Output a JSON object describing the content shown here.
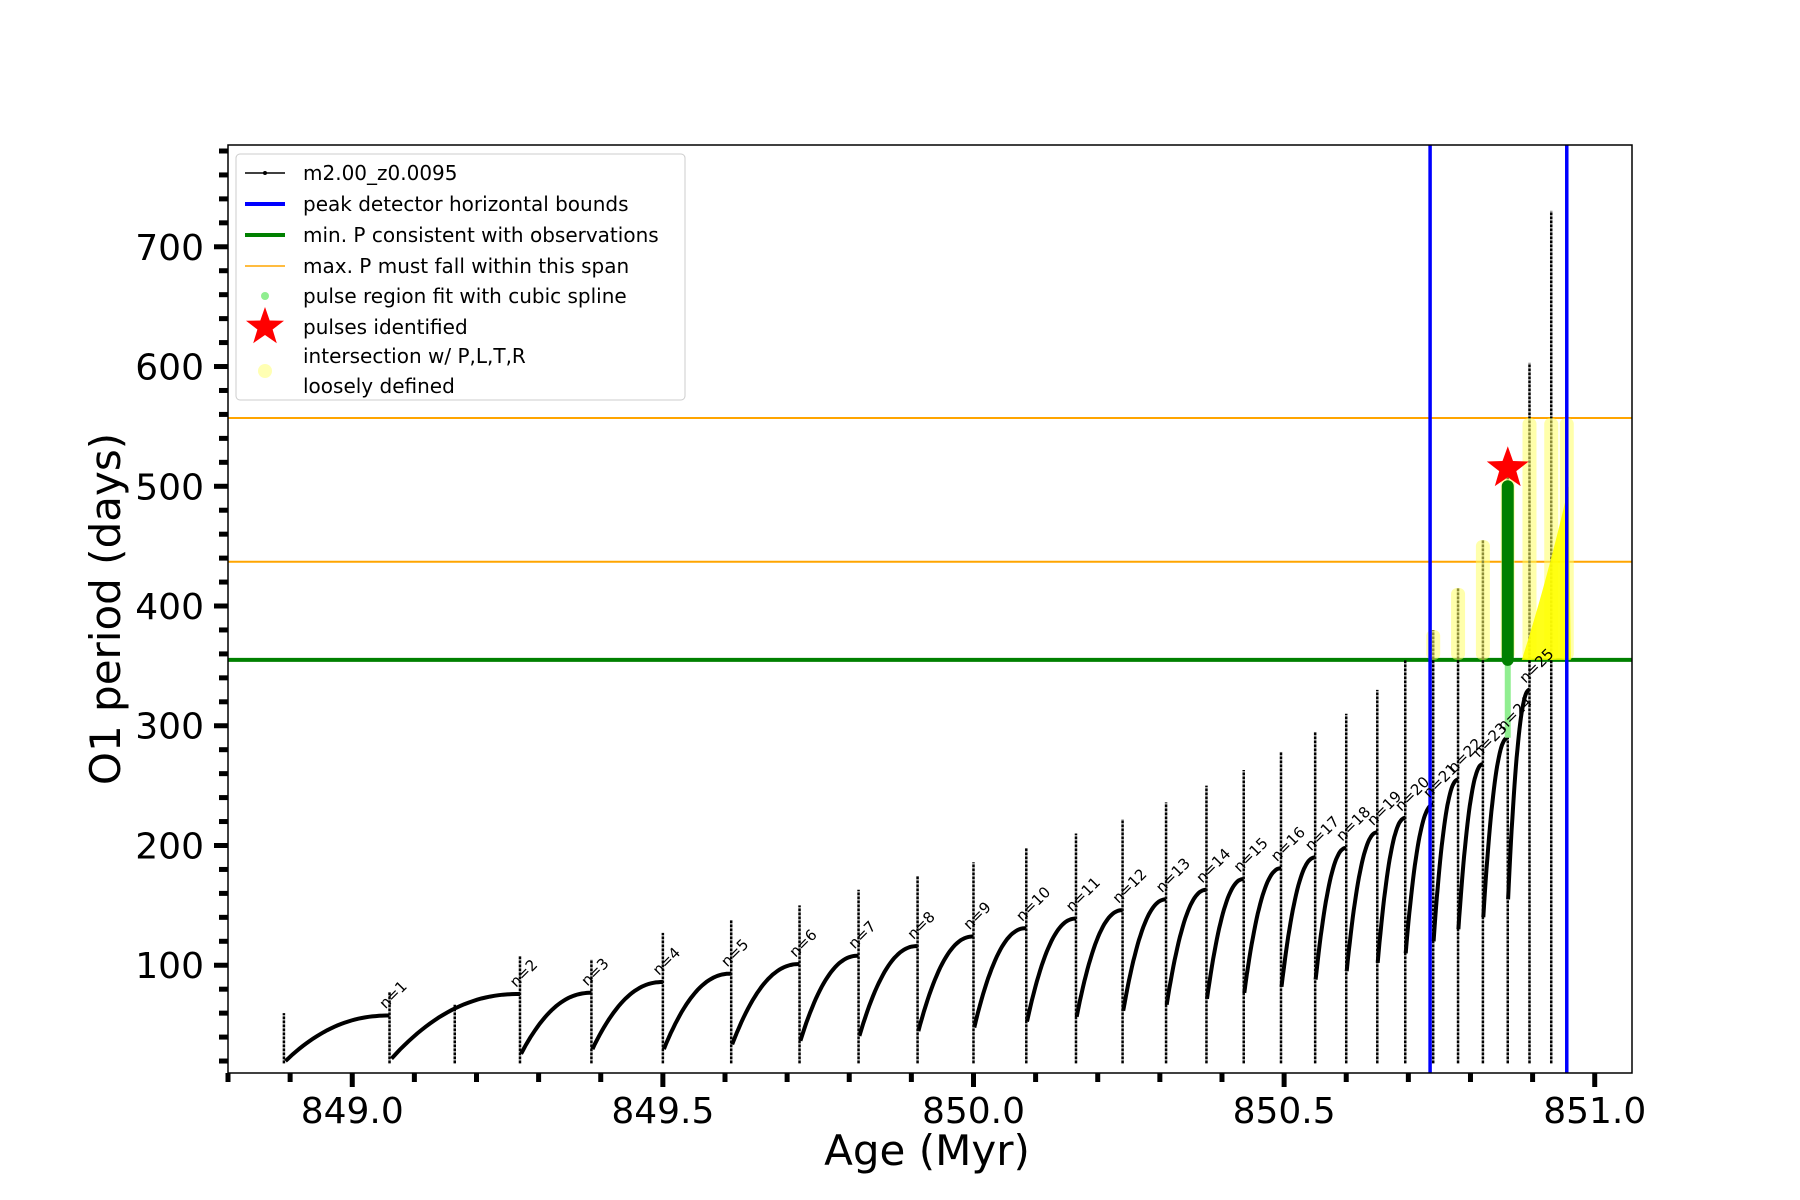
{
  "chart_data": {
    "type": "line",
    "xlabel": "Age (Myr)",
    "ylabel": "O1 period (days)",
    "xlim": [
      848.8,
      851.06
    ],
    "ylim": [
      10,
      785
    ],
    "x_ticks": [
      849.0,
      849.5,
      850.0,
      850.5,
      851.0
    ],
    "x_tick_labels": [
      "849.0",
      "849.5",
      "850.0",
      "850.5",
      "851.0"
    ],
    "y_ticks": [
      100,
      200,
      300,
      400,
      500,
      600,
      700
    ],
    "y_tick_labels": [
      "100",
      "200",
      "300",
      "400",
      "500",
      "600",
      "700"
    ],
    "legend": {
      "placement": "upper-left",
      "entries": [
        {
          "label": "m2.00_z0.0095",
          "kind": "line-marker",
          "color": "#000000"
        },
        {
          "label": "peak detector horizontal bounds",
          "kind": "line",
          "color": "#0000ff"
        },
        {
          "label": "min. P consistent with observations",
          "kind": "line",
          "color": "#008000"
        },
        {
          "label": "max. P must fall within this span",
          "kind": "thin-line",
          "color": "#ffa500"
        },
        {
          "label": "pulse region fit with cubic spline",
          "kind": "dot",
          "color": "#90ee90"
        },
        {
          "label": "pulses identified",
          "kind": "star",
          "color": "#ff0000"
        },
        {
          "label": "intersection w/ P,L,T,R",
          "label2": "loosely defined",
          "kind": "dot",
          "color": "#ffffb3"
        }
      ]
    },
    "vlines": [
      {
        "x": 850.735,
        "color": "#0000ff",
        "role": "peak detector horizontal bounds"
      },
      {
        "x": 850.955,
        "color": "#0000ff",
        "role": "peak detector horizontal bounds"
      }
    ],
    "hlines": [
      {
        "y": 355,
        "color": "#008000",
        "role": "min. P consistent with observations"
      },
      {
        "y": 437,
        "color": "#ffa500",
        "role": "max. P span lower"
      },
      {
        "y": 557,
        "color": "#ffa500",
        "role": "max. P span upper"
      }
    ],
    "pulses": [
      {
        "n": 1,
        "x": 849.06,
        "peak": 58,
        "start": 22
      },
      {
        "n": 2,
        "x": 849.27,
        "peak": 76,
        "start": 26
      },
      {
        "n": 3,
        "x": 849.385,
        "peak": 77,
        "start": 30
      },
      {
        "n": 4,
        "x": 849.5,
        "peak": 86,
        "start": 30
      },
      {
        "n": 5,
        "x": 849.61,
        "peak": 93,
        "start": 34
      },
      {
        "n": 6,
        "x": 849.72,
        "peak": 101,
        "start": 37
      },
      {
        "n": 7,
        "x": 849.815,
        "peak": 108,
        "start": 41
      },
      {
        "n": 8,
        "x": 849.91,
        "peak": 116,
        "start": 45
      },
      {
        "n": 9,
        "x": 850.0,
        "peak": 124,
        "start": 48
      },
      {
        "n": 10,
        "x": 850.085,
        "peak": 131,
        "start": 53
      },
      {
        "n": 11,
        "x": 850.165,
        "peak": 139,
        "start": 57
      },
      {
        "n": 12,
        "x": 850.24,
        "peak": 146,
        "start": 62
      },
      {
        "n": 13,
        "x": 850.31,
        "peak": 155,
        "start": 67
      },
      {
        "n": 14,
        "x": 850.375,
        "peak": 163,
        "start": 72
      },
      {
        "n": 15,
        "x": 850.435,
        "peak": 172,
        "start": 77
      },
      {
        "n": 16,
        "x": 850.495,
        "peak": 181,
        "start": 82
      },
      {
        "n": 17,
        "x": 850.55,
        "peak": 190,
        "start": 88
      },
      {
        "n": 18,
        "x": 850.6,
        "peak": 198,
        "start": 95
      },
      {
        "n": 19,
        "x": 850.65,
        "peak": 211,
        "start": 102
      },
      {
        "n": 20,
        "x": 850.695,
        "peak": 223,
        "start": 110
      },
      {
        "n": 21,
        "x": 850.74,
        "peak": 234,
        "start": 120
      },
      {
        "n": 22,
        "x": 850.78,
        "peak": 255,
        "start": 130
      },
      {
        "n": 23,
        "x": 850.82,
        "peak": 268,
        "start": 140
      },
      {
        "n": 24,
        "x": 850.86,
        "peak": 290,
        "start": 155
      },
      {
        "n": 25,
        "x": 850.895,
        "peak": 330,
        "start": 170
      }
    ],
    "spikes": [
      {
        "x": 848.89,
        "top": 60
      },
      {
        "x": 849.06,
        "top": 78
      },
      {
        "x": 849.165,
        "top": 67
      },
      {
        "x": 849.27,
        "top": 108
      },
      {
        "x": 849.385,
        "top": 105
      },
      {
        "x": 849.5,
        "top": 127
      },
      {
        "x": 849.61,
        "top": 138
      },
      {
        "x": 849.72,
        "top": 150
      },
      {
        "x": 849.815,
        "top": 163
      },
      {
        "x": 849.91,
        "top": 175
      },
      {
        "x": 850.0,
        "top": 186
      },
      {
        "x": 850.085,
        "top": 198
      },
      {
        "x": 850.165,
        "top": 210
      },
      {
        "x": 850.24,
        "top": 222
      },
      {
        "x": 850.31,
        "top": 236
      },
      {
        "x": 850.375,
        "top": 250
      },
      {
        "x": 850.435,
        "top": 263
      },
      {
        "x": 850.495,
        "top": 278
      },
      {
        "x": 850.55,
        "top": 295
      },
      {
        "x": 850.6,
        "top": 310
      },
      {
        "x": 850.65,
        "top": 330
      },
      {
        "x": 850.695,
        "top": 355
      },
      {
        "x": 850.74,
        "top": 380
      },
      {
        "x": 850.78,
        "top": 415
      },
      {
        "x": 850.82,
        "top": 455
      },
      {
        "x": 850.86,
        "top": 515
      },
      {
        "x": 850.895,
        "top": 603
      },
      {
        "x": 850.93,
        "top": 730
      },
      {
        "x": 850.955,
        "top": 722
      }
    ],
    "pulse_region_spline": {
      "x": 850.86,
      "y_range": [
        290,
        500
      ]
    },
    "identified_pulse": {
      "x": 850.86,
      "y": 515
    },
    "intersection_regions": [
      {
        "x": 850.74,
        "y_range": [
          355,
          380
        ]
      },
      {
        "x": 850.78,
        "y_range": [
          355,
          415
        ]
      },
      {
        "x": 850.82,
        "y_range": [
          355,
          455
        ]
      },
      {
        "x": 850.86,
        "y_range": [
          355,
          515
        ]
      },
      {
        "x": 850.895,
        "y_range": [
          355,
          557
        ]
      },
      {
        "x": 850.93,
        "y_range": [
          355,
          557
        ]
      },
      {
        "x": 850.955,
        "y_range": [
          355,
          557
        ]
      }
    ],
    "annotations": [
      "n=1",
      "n=2",
      "n=3",
      "n=4",
      "n=5",
      "n=6",
      "n=7",
      "n=8",
      "n=9",
      "n=10",
      "n=11",
      "n=12",
      "n=13",
      "n=14",
      "n=15",
      "n=16",
      "n=17",
      "n=18",
      "n=19",
      "n=20",
      "n=21",
      "n=22",
      "n=23",
      "n=24",
      "n=25"
    ]
  }
}
